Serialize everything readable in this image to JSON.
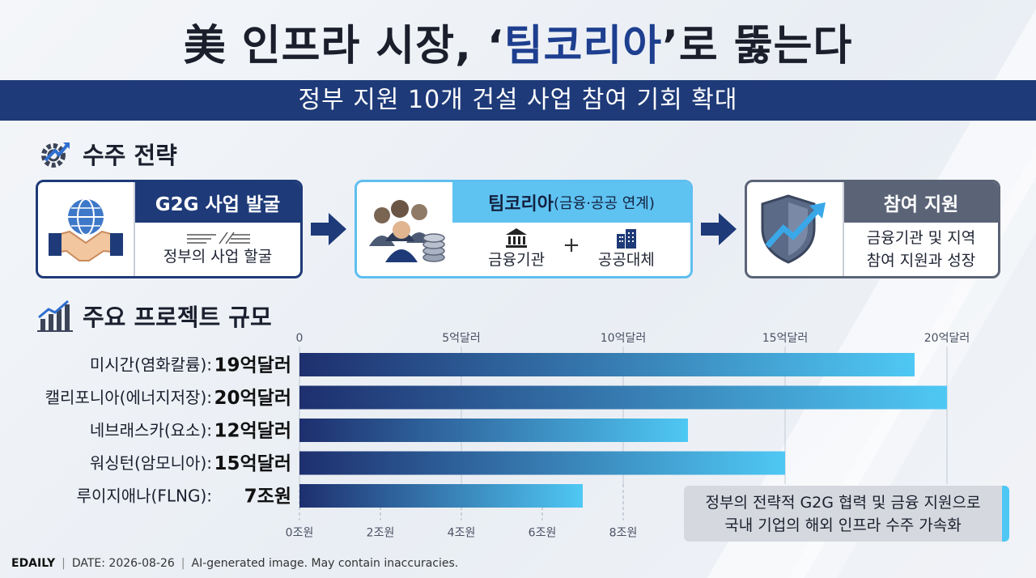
{
  "title": {
    "prefix": "美 인프라 시장, ‘",
    "highlight": "팀코리아",
    "suffix": "’로 뚫는다"
  },
  "subtitle": "정부 지원 10개 건설 사업 참여 기회 확대",
  "strategy": {
    "section_title": "수주 전략",
    "cards": [
      {
        "title": "G2G 사업 발굴",
        "desc": "정부의 사업 할굴"
      },
      {
        "title": "팀코리아",
        "title_sub": "(금융·공공 연계)",
        "item1": "금융기관",
        "plus": "+",
        "item2": "공공대체"
      },
      {
        "title": "참여 지원",
        "desc_line1": "금융기관 및 지역",
        "desc_line2": "참여 지원과 성장"
      }
    ]
  },
  "chart_section_title": "주요 프로젝트 규모",
  "chart_data": {
    "type": "bar",
    "orientation": "horizontal",
    "categories": [
      "미시간(염화칼륨):",
      "캘리포니아(에너지저장):",
      "네브래스카(요소):",
      "워싱턴(암모니아):",
      "루이지애나(FLNG):"
    ],
    "values": [
      19,
      20,
      12,
      15,
      7
    ],
    "units": [
      "dollar",
      "dollar",
      "dollar",
      "dollar",
      "won"
    ],
    "value_labels": [
      "19억달러",
      "20억달러",
      "12억달러",
      "15억달러",
      "7조원"
    ],
    "top_axis": {
      "unit": "억달러",
      "range": [
        0,
        20
      ],
      "ticks": [
        0,
        5,
        10,
        15,
        20
      ],
      "tick_labels": [
        "0",
        "5억달러",
        "10억달러",
        "15억달러",
        "20억달러"
      ]
    },
    "bottom_axis": {
      "unit": "조원",
      "range": [
        0,
        16
      ],
      "ticks": [
        0,
        2,
        4,
        6,
        8
      ],
      "tick_labels": [
        "0조원",
        "2조원",
        "4조원",
        "6조원",
        "8조원"
      ]
    },
    "grid": true,
    "colors": {
      "bar_start": "#1e2f6e",
      "bar_end": "#4fc8f4"
    }
  },
  "note": {
    "line1": "정부의 전략적 G2G 협력 및 금융 지원으로",
    "line2": "국내 기업의 해외 인프라 수주 가속화"
  },
  "footer": {
    "brand": "EDAILY",
    "date": "DATE: 2026-08-26",
    "disclaimer": "AI-generated image. May contain inaccuracies."
  }
}
